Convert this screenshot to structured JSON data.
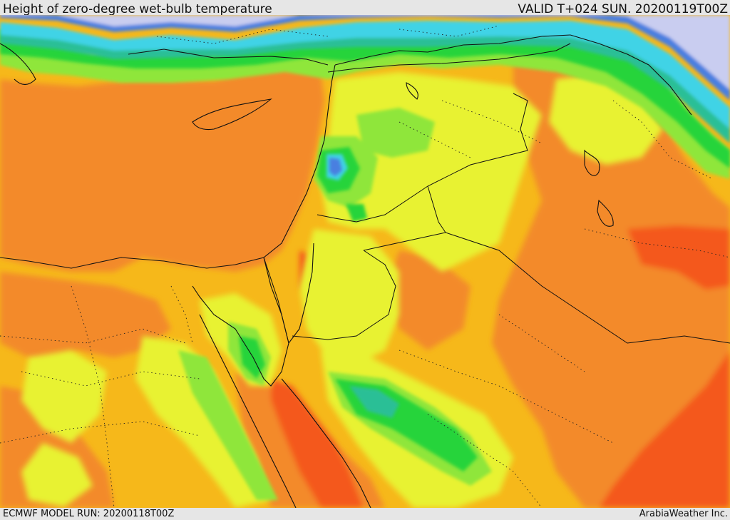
{
  "header": {
    "title": "Height of zero-degree wet-bulb temperature",
    "valid": "VALID T+024 SUN. 20200119T00Z"
  },
  "footer": {
    "model_run": "ECMWF MODEL RUN: 20200118T00Z",
    "credit": "ArabiaWeather Inc."
  },
  "map": {
    "region": "Eastern Mediterranean, Egypt, Levant, Iraq and northern Saudi Arabia",
    "colors": {
      "lowest_snow": "#c9cdf0",
      "blue": "#4a7fe0",
      "cyan": "#3fd3e6",
      "teal": "#2cbf96",
      "green": "#25d43a",
      "light_green": "#8fe63a",
      "yellow": "#e8f230",
      "light_orange": "#f6b81a",
      "orange": "#f38a2a",
      "red_orange": "#f4581a",
      "borders": "#111111"
    }
  }
}
